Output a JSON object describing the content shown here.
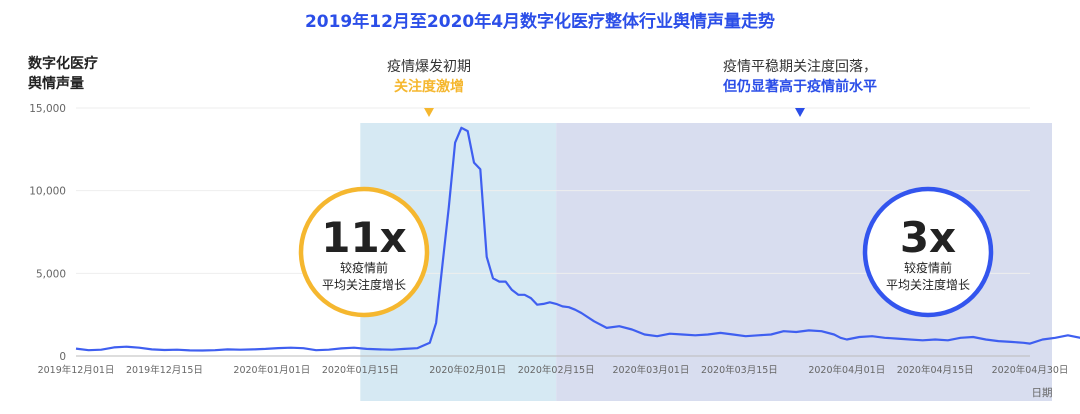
{
  "chart_data": {
    "type": "line",
    "title": "2019年12月至2020年4月数字化医疗整体行业舆情声量走势",
    "ylabel_lines": [
      "数字化医疗",
      "舆情声量"
    ],
    "xlabel": "日期",
    "ylim": [
      0,
      15000
    ],
    "yticks": [
      0,
      5000,
      10000,
      15000
    ],
    "ytick_labels": [
      "0",
      "5,000",
      "10,000",
      "15,000"
    ],
    "x_range": [
      "2019-12-01",
      "2020-04-30"
    ],
    "xtick_labels": [
      "2019年12月01日",
      "2019年12月15日",
      "2020年01月01日",
      "2020年01月15日",
      "2020年02月01日",
      "2020年02月15日",
      "2020年03月01日",
      "2020年03月15日",
      "2020年04月01日",
      "2020年04月15日",
      "2020年04月30日"
    ],
    "xtick_days": [
      0,
      14,
      31,
      45,
      62,
      76,
      91,
      105,
      122,
      136,
      151
    ],
    "series": [
      {
        "values": [
          [
            0,
            450
          ],
          [
            2,
            350
          ],
          [
            4,
            380
          ],
          [
            6,
            520
          ],
          [
            8,
            560
          ],
          [
            10,
            500
          ],
          [
            12,
            400
          ],
          [
            14,
            360
          ],
          [
            16,
            380
          ],
          [
            18,
            340
          ],
          [
            20,
            330
          ],
          [
            22,
            350
          ],
          [
            24,
            400
          ],
          [
            26,
            380
          ],
          [
            28,
            400
          ],
          [
            30,
            430
          ],
          [
            32,
            480
          ],
          [
            34,
            500
          ],
          [
            36,
            470
          ],
          [
            38,
            350
          ],
          [
            40,
            380
          ],
          [
            42,
            460
          ],
          [
            44,
            500
          ],
          [
            46,
            430
          ],
          [
            48,
            400
          ],
          [
            50,
            380
          ],
          [
            52,
            430
          ],
          [
            54,
            470
          ],
          [
            56,
            800
          ],
          [
            57,
            2000
          ],
          [
            58,
            5500
          ],
          [
            59,
            9000
          ],
          [
            60,
            12900
          ],
          [
            61,
            13800
          ],
          [
            62,
            13600
          ],
          [
            63,
            11700
          ],
          [
            64,
            11300
          ],
          [
            65,
            6000
          ],
          [
            66,
            4700
          ],
          [
            67,
            4500
          ],
          [
            68,
            4500
          ],
          [
            69,
            4000
          ],
          [
            70,
            3700
          ],
          [
            71,
            3700
          ],
          [
            72,
            3500
          ],
          [
            73,
            3100
          ],
          [
            74,
            3150
          ],
          [
            75,
            3250
          ],
          [
            76,
            3150
          ],
          [
            77,
            3000
          ],
          [
            78,
            2950
          ],
          [
            79,
            2800
          ],
          [
            80,
            2600
          ],
          [
            82,
            2100
          ],
          [
            84,
            1700
          ],
          [
            86,
            1800
          ],
          [
            88,
            1600
          ],
          [
            90,
            1300
          ],
          [
            92,
            1200
          ],
          [
            94,
            1350
          ],
          [
            96,
            1300
          ],
          [
            98,
            1250
          ],
          [
            100,
            1300
          ],
          [
            102,
            1400
          ],
          [
            104,
            1300
          ],
          [
            106,
            1200
          ],
          [
            108,
            1250
          ],
          [
            110,
            1300
          ],
          [
            112,
            1500
          ],
          [
            114,
            1450
          ],
          [
            116,
            1550
          ],
          [
            118,
            1500
          ],
          [
            120,
            1300
          ],
          [
            121,
            1100
          ],
          [
            122,
            1000
          ],
          [
            124,
            1150
          ],
          [
            126,
            1200
          ],
          [
            128,
            1100
          ],
          [
            130,
            1050
          ],
          [
            132,
            1000
          ],
          [
            134,
            950
          ],
          [
            136,
            1000
          ],
          [
            138,
            950
          ],
          [
            140,
            1100
          ],
          [
            142,
            1150
          ],
          [
            144,
            1000
          ],
          [
            146,
            900
          ],
          [
            148,
            850
          ],
          [
            150,
            800
          ],
          [
            151,
            750
          ],
          [
            153,
            1000
          ],
          [
            155,
            1100
          ],
          [
            157,
            1250
          ],
          [
            159,
            1100
          ],
          [
            161,
            1000
          ],
          [
            163,
            850
          ]
        ]
      }
    ],
    "shaded_regions": [
      {
        "from": 45,
        "to": 76,
        "color": "#d6e9f3"
      },
      {
        "from": 76,
        "to": 163,
        "color": "#d8ddef"
      }
    ],
    "annotations": {
      "early": {
        "line1": "疫情爆发初期",
        "line2": "关注度激增",
        "color": "#f5b72f"
      },
      "stable": {
        "line1": "疫情平稳期关注度回落，",
        "line2": "但仍显著高于疫情前水平",
        "color": "#2b4ee8"
      }
    },
    "badges": [
      {
        "big": "11x",
        "line1": "较疫情前",
        "line2": "平均关注度增长",
        "color": "#f5b72f"
      },
      {
        "big": "3x",
        "line1": "较疫情前",
        "line2": "平均关注度增长",
        "color": "#3355ee"
      }
    ],
    "colors": {
      "title": "#2b4ee8",
      "line": "#3f5ff0",
      "marker_yellow": "#f5b72f",
      "marker_blue": "#2b4ee8"
    }
  }
}
